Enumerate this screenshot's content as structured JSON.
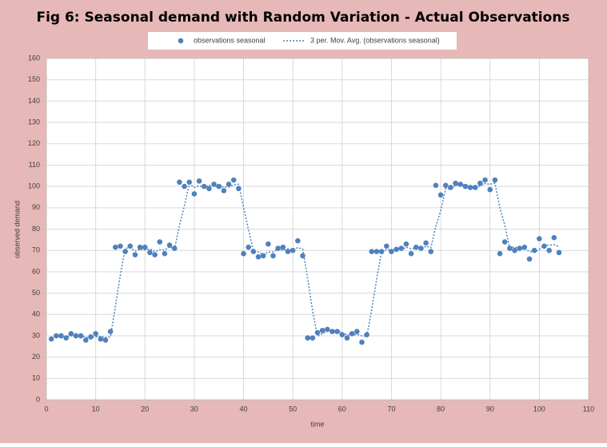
{
  "chart_data": {
    "type": "scatter",
    "title": "Fig 6: Seasonal demand with Random Variation - Actual Observations",
    "x_label": "time",
    "y_label": "observed demand",
    "xlim": [
      0,
      110
    ],
    "xticks": [
      0,
      10,
      20,
      30,
      40,
      50,
      60,
      70,
      80,
      90,
      100,
      110
    ],
    "ylim": [
      0,
      160
    ],
    "yticks": [
      0,
      10,
      20,
      30,
      40,
      50,
      60,
      70,
      80,
      90,
      100,
      110,
      120,
      130,
      140,
      150,
      160
    ],
    "grid": true,
    "legend": "top",
    "x": [
      1,
      2,
      3,
      4,
      5,
      6,
      7,
      8,
      9,
      10,
      11,
      12,
      13,
      14,
      15,
      16,
      17,
      18,
      19,
      20,
      21,
      22,
      23,
      24,
      25,
      26,
      27,
      28,
      29,
      30,
      31,
      32,
      33,
      34,
      35,
      36,
      37,
      38,
      39,
      40,
      41,
      42,
      43,
      44,
      45,
      46,
      47,
      48,
      49,
      50,
      51,
      52,
      53,
      54,
      55,
      56,
      57,
      58,
      59,
      60,
      61,
      62,
      63,
      64,
      65,
      66,
      67,
      68,
      69,
      70,
      71,
      72,
      73,
      74,
      75,
      76,
      77,
      78,
      79,
      80,
      81,
      82,
      83,
      84,
      85,
      86,
      87,
      88,
      89,
      90,
      91,
      92,
      93,
      94,
      95,
      96,
      97,
      98,
      99,
      100,
      101,
      102,
      103,
      104
    ],
    "series": [
      {
        "name": "observations seasonal",
        "color": "#4f81bd",
        "style": "markers",
        "values": [
          28.5,
          30,
          30,
          29,
          31,
          30,
          30,
          28,
          29.5,
          31,
          28.5,
          28,
          32,
          71.5,
          72,
          69.5,
          72,
          68,
          71.5,
          71.5,
          69,
          68,
          74,
          68.5,
          72.5,
          71,
          102,
          100,
          102,
          96.5,
          102.5,
          100,
          99,
          101,
          100,
          98,
          101,
          103,
          99,
          68.5,
          71.5,
          69.5,
          67,
          67.5,
          73,
          67.5,
          71,
          71.5,
          69.5,
          70,
          74.5,
          67.5,
          29,
          29,
          31.5,
          32.5,
          33,
          32,
          32,
          30.5,
          29,
          31,
          32,
          27,
          30.5,
          69.5,
          69.5,
          69.5,
          72,
          69.5,
          70.5,
          71,
          73,
          68.5,
          71.5,
          71,
          73.5,
          69.5,
          100.5,
          96,
          100.5,
          99.5,
          101.5,
          101,
          100,
          99.5,
          99.5,
          101.5,
          103,
          98.5,
          103,
          68.5,
          74,
          71,
          70,
          71,
          71.5,
          66,
          70,
          75.5,
          72,
          70,
          76,
          69
        ]
      },
      {
        "name": "3 per. Mov. Avg. (observations seasonal)",
        "color": "#4f81bd",
        "style": "dotted-line",
        "values": [
          null,
          null,
          29.5,
          29.7,
          30,
          30,
          30.3,
          29.3,
          29.2,
          29.5,
          29.7,
          29.2,
          29.5,
          43.8,
          58.5,
          71,
          71.2,
          69.8,
          70.5,
          70.3,
          70.7,
          69.5,
          70.3,
          70.2,
          71.7,
          70.7,
          81.8,
          91,
          101.3,
          99.5,
          100.3,
          99.7,
          100.5,
          100,
          100,
          99.7,
          99.7,
          100.7,
          101,
          90.2,
          79.7,
          69.8,
          69.3,
          68,
          69.2,
          69.3,
          70.5,
          70,
          70.7,
          70.3,
          71.3,
          70.7,
          57,
          41.8,
          29.8,
          31,
          32.3,
          32.5,
          32.3,
          31.5,
          30.5,
          30.2,
          30.7,
          30,
          29.8,
          42.3,
          56.5,
          69.5,
          70.3,
          70.3,
          70.7,
          70.3,
          71.5,
          70.8,
          71,
          70.3,
          72,
          71.3,
          81.2,
          88.7,
          99,
          98.7,
          100.5,
          100.7,
          100.8,
          100.2,
          99.7,
          100.2,
          101.3,
          101,
          101.5,
          90,
          81.8,
          71.2,
          71.7,
          70.7,
          70.8,
          69.5,
          69.2,
          70.5,
          72.5,
          72.5,
          72.7,
          71.7
        ]
      }
    ]
  }
}
